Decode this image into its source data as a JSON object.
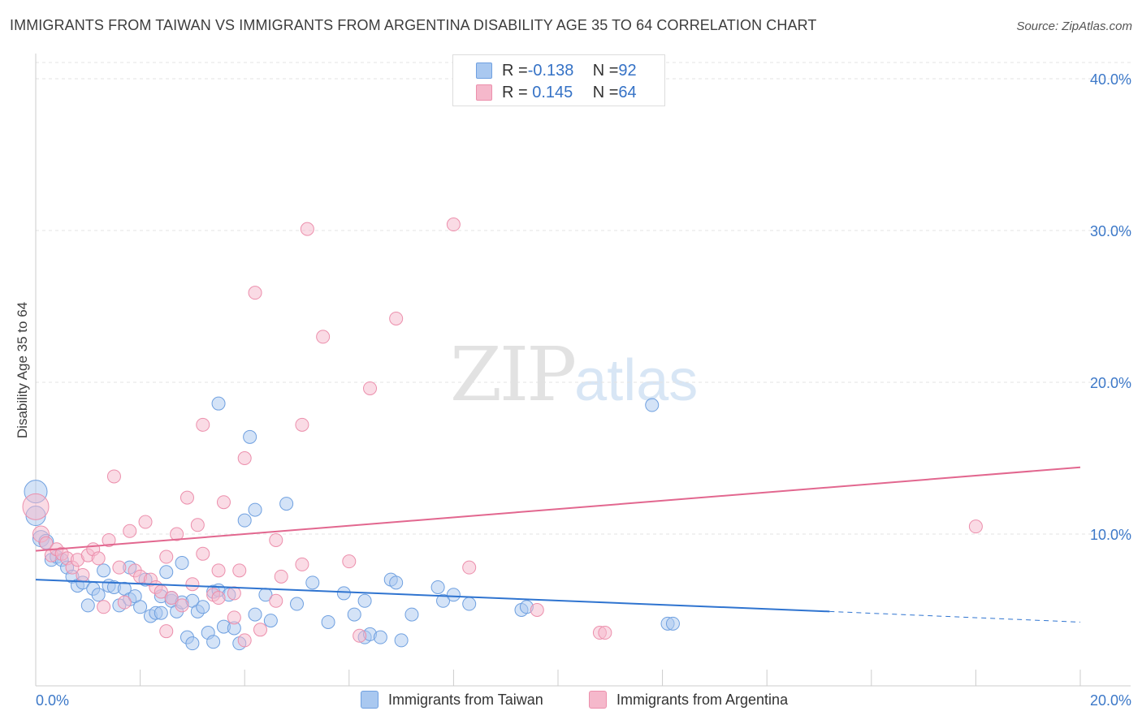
{
  "title": "IMMIGRANTS FROM TAIWAN VS IMMIGRANTS FROM ARGENTINA DISABILITY AGE 35 TO 64 CORRELATION CHART",
  "source": "Source: ZipAtlas.com",
  "watermark": {
    "zip": "ZIP",
    "atlas": "atlas"
  },
  "legend": {
    "rows": [
      {
        "r_label": "R = ",
        "r_value": "-0.138",
        "n_label": "N = ",
        "n_value": "92",
        "color": "#a9c8f0"
      },
      {
        "r_label": "R = ",
        "r_value": " 0.145",
        "n_label": "N = ",
        "n_value": "64",
        "color": "#f5b8cb"
      }
    ]
  },
  "chart_data": {
    "type": "scatter",
    "ylabel": "Disability Age 35 to 64",
    "x_tick_labels": [
      "0.0%",
      "20.0%"
    ],
    "y_tick_labels": [
      "10.0%",
      "20.0%",
      "30.0%",
      "40.0%"
    ],
    "x_ticks": [
      0,
      20
    ],
    "y_ticks": [
      10,
      20,
      30,
      40
    ],
    "xlim": [
      0,
      20
    ],
    "ylim": [
      0,
      40.8
    ],
    "grid": true,
    "series": [
      {
        "name": "Immigrants from Taiwan",
        "color": "#6fa0e0",
        "fill": "#a9c8f0",
        "trend": {
          "x0": 0,
          "y0": 7.0,
          "x1": 15.2,
          "y1": 4.9,
          "dash_x1": 20,
          "dash_y1": 4.2,
          "color": "#2f74d0"
        },
        "points": [
          [
            0.0,
            12.8,
            14
          ],
          [
            0.0,
            11.2,
            12
          ],
          [
            0.1,
            9.7,
            10
          ],
          [
            0.2,
            9.5,
            9
          ],
          [
            0.3,
            8.3,
            8
          ],
          [
            0.4,
            8.5,
            8
          ],
          [
            0.5,
            8.3,
            8
          ],
          [
            0.6,
            7.8,
            8
          ],
          [
            0.7,
            7.2,
            8
          ],
          [
            0.8,
            6.6,
            8
          ],
          [
            0.9,
            6.8,
            8
          ],
          [
            1.0,
            5.3,
            8
          ],
          [
            1.1,
            6.4,
            8
          ],
          [
            1.2,
            6.0,
            8
          ],
          [
            1.3,
            7.6,
            8
          ],
          [
            1.4,
            6.6,
            8
          ],
          [
            1.5,
            6.5,
            8
          ],
          [
            1.6,
            5.3,
            8
          ],
          [
            1.7,
            6.4,
            8
          ],
          [
            1.8,
            5.7,
            8
          ],
          [
            1.8,
            7.8,
            8
          ],
          [
            1.9,
            5.9,
            8
          ],
          [
            2.0,
            5.2,
            8
          ],
          [
            2.1,
            7.0,
            8
          ],
          [
            2.2,
            4.6,
            8
          ],
          [
            2.3,
            4.8,
            8
          ],
          [
            2.4,
            5.9,
            8
          ],
          [
            2.4,
            4.8,
            8
          ],
          [
            2.5,
            7.5,
            8
          ],
          [
            2.6,
            5.6,
            8
          ],
          [
            2.6,
            5.8,
            8
          ],
          [
            2.7,
            4.9,
            8
          ],
          [
            2.8,
            8.1,
            8
          ],
          [
            2.8,
            5.5,
            8
          ],
          [
            2.9,
            3.2,
            8
          ],
          [
            3.0,
            2.8,
            8
          ],
          [
            3.0,
            5.6,
            8
          ],
          [
            3.1,
            4.9,
            8
          ],
          [
            3.2,
            5.2,
            8
          ],
          [
            3.3,
            3.5,
            8
          ],
          [
            3.4,
            2.9,
            8
          ],
          [
            3.4,
            6.2,
            8
          ],
          [
            3.5,
            6.3,
            8
          ],
          [
            3.5,
            18.6,
            8
          ],
          [
            3.6,
            3.9,
            8
          ],
          [
            3.7,
            6.0,
            8
          ],
          [
            3.8,
            3.8,
            8
          ],
          [
            3.9,
            2.8,
            8
          ],
          [
            4.0,
            10.9,
            8
          ],
          [
            4.1,
            16.4,
            8
          ],
          [
            4.2,
            11.6,
            8
          ],
          [
            4.2,
            4.7,
            8
          ],
          [
            4.4,
            6.0,
            8
          ],
          [
            4.5,
            4.3,
            8
          ],
          [
            4.8,
            12.0,
            8
          ],
          [
            5.0,
            5.4,
            8
          ],
          [
            5.3,
            6.8,
            8
          ],
          [
            5.6,
            4.2,
            8
          ],
          [
            5.9,
            6.1,
            8
          ],
          [
            6.1,
            4.7,
            8
          ],
          [
            6.3,
            5.6,
            8
          ],
          [
            6.3,
            3.2,
            8
          ],
          [
            6.4,
            3.4,
            8
          ],
          [
            6.6,
            3.2,
            8
          ],
          [
            6.8,
            7.0,
            8
          ],
          [
            6.9,
            6.8,
            8
          ],
          [
            7.0,
            3.0,
            8
          ],
          [
            7.2,
            4.7,
            8
          ],
          [
            7.7,
            6.5,
            8
          ],
          [
            7.8,
            5.6,
            8
          ],
          [
            8.0,
            6.0,
            8
          ],
          [
            8.3,
            5.4,
            8
          ],
          [
            9.3,
            5.0,
            8
          ],
          [
            9.4,
            5.2,
            8
          ],
          [
            11.8,
            18.5,
            8
          ],
          [
            12.1,
            4.1,
            8
          ],
          [
            12.2,
            4.1,
            8
          ]
        ]
      },
      {
        "name": "Immigrants from Argentina",
        "color": "#ec8fac",
        "fill": "#f5b8cb",
        "trend": {
          "x0": 0,
          "y0": 8.9,
          "x1": 20,
          "y1": 14.4,
          "color": "#e2678f"
        },
        "points": [
          [
            0.0,
            11.8,
            16
          ],
          [
            0.1,
            10.0,
            10
          ],
          [
            0.2,
            9.4,
            8
          ],
          [
            0.3,
            8.6,
            8
          ],
          [
            0.4,
            9.0,
            8
          ],
          [
            0.5,
            8.7,
            8
          ],
          [
            0.6,
            8.4,
            8
          ],
          [
            0.7,
            7.8,
            8
          ],
          [
            0.8,
            8.3,
            8
          ],
          [
            0.9,
            7.3,
            8
          ],
          [
            1.0,
            8.6,
            8
          ],
          [
            1.1,
            9.0,
            8
          ],
          [
            1.2,
            8.4,
            8
          ],
          [
            1.3,
            5.2,
            8
          ],
          [
            1.4,
            9.6,
            8
          ],
          [
            1.5,
            13.8,
            8
          ],
          [
            1.6,
            7.8,
            8
          ],
          [
            1.7,
            5.5,
            8
          ],
          [
            1.8,
            10.2,
            8
          ],
          [
            1.9,
            7.6,
            8
          ],
          [
            2.0,
            7.2,
            8
          ],
          [
            2.1,
            10.8,
            8
          ],
          [
            2.2,
            7.0,
            8
          ],
          [
            2.3,
            6.5,
            8
          ],
          [
            2.4,
            6.2,
            8
          ],
          [
            2.5,
            8.5,
            8
          ],
          [
            2.5,
            3.6,
            8
          ],
          [
            2.6,
            5.8,
            8
          ],
          [
            2.7,
            10.0,
            8
          ],
          [
            2.8,
            5.3,
            8
          ],
          [
            2.9,
            12.4,
            8
          ],
          [
            3.0,
            6.7,
            8
          ],
          [
            3.1,
            10.6,
            8
          ],
          [
            3.2,
            17.2,
            8
          ],
          [
            3.2,
            8.7,
            8
          ],
          [
            3.4,
            6.0,
            8
          ],
          [
            3.5,
            5.8,
            8
          ],
          [
            3.5,
            7.6,
            8
          ],
          [
            3.6,
            12.1,
            8
          ],
          [
            3.8,
            6.1,
            8
          ],
          [
            3.8,
            4.5,
            8
          ],
          [
            3.9,
            7.6,
            8
          ],
          [
            4.0,
            15.0,
            8
          ],
          [
            4.0,
            3.0,
            8
          ],
          [
            4.2,
            25.9,
            8
          ],
          [
            4.3,
            3.7,
            8
          ],
          [
            4.6,
            5.6,
            8
          ],
          [
            4.6,
            9.6,
            8
          ],
          [
            4.7,
            7.2,
            8
          ],
          [
            5.1,
            8.0,
            8
          ],
          [
            5.1,
            17.2,
            8
          ],
          [
            5.2,
            30.1,
            8
          ],
          [
            5.5,
            23.0,
            8
          ],
          [
            6.0,
            8.2,
            8
          ],
          [
            6.2,
            3.3,
            8
          ],
          [
            6.4,
            19.6,
            8
          ],
          [
            6.9,
            24.2,
            8
          ],
          [
            8.0,
            30.4,
            8
          ],
          [
            8.3,
            7.8,
            8
          ],
          [
            9.6,
            5.0,
            8
          ],
          [
            10.8,
            3.5,
            8
          ],
          [
            10.9,
            3.5,
            8
          ],
          [
            18.0,
            10.5,
            8
          ]
        ]
      }
    ]
  }
}
